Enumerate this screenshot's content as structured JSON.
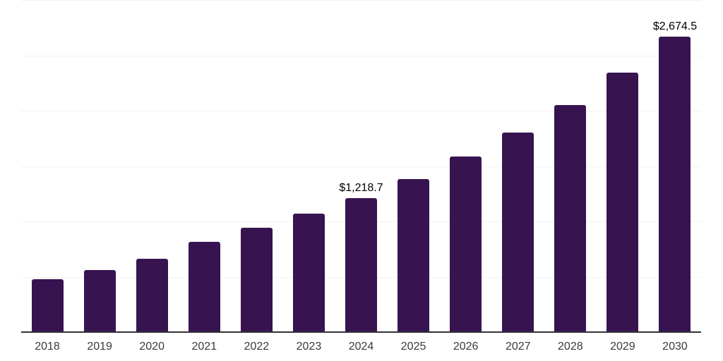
{
  "chart_data": {
    "type": "bar",
    "title": "",
    "xlabel": "",
    "ylabel": "",
    "categories": [
      "2018",
      "2019",
      "2020",
      "2021",
      "2022",
      "2023",
      "2024",
      "2025",
      "2026",
      "2027",
      "2028",
      "2029",
      "2030"
    ],
    "values": [
      485,
      570,
      670,
      820,
      950,
      1075,
      1218.7,
      1390,
      1590,
      1810,
      2060,
      2350,
      2674.5
    ],
    "value_labels": {
      "2024": "$1,218.7",
      "2030": "$2,674.5"
    },
    "ylim": [
      0,
      3000
    ],
    "gridline_interval": 500,
    "grid": "horizontal",
    "legend": "none",
    "y_axis_tick_labels_visible": false
  },
  "colors": {
    "bar": "#371450",
    "gridline": "#f2f2f2",
    "axis_line": "#333238",
    "tick_label": "#3a3a3a",
    "value_label": "#000000",
    "background": "#ffffff"
  }
}
